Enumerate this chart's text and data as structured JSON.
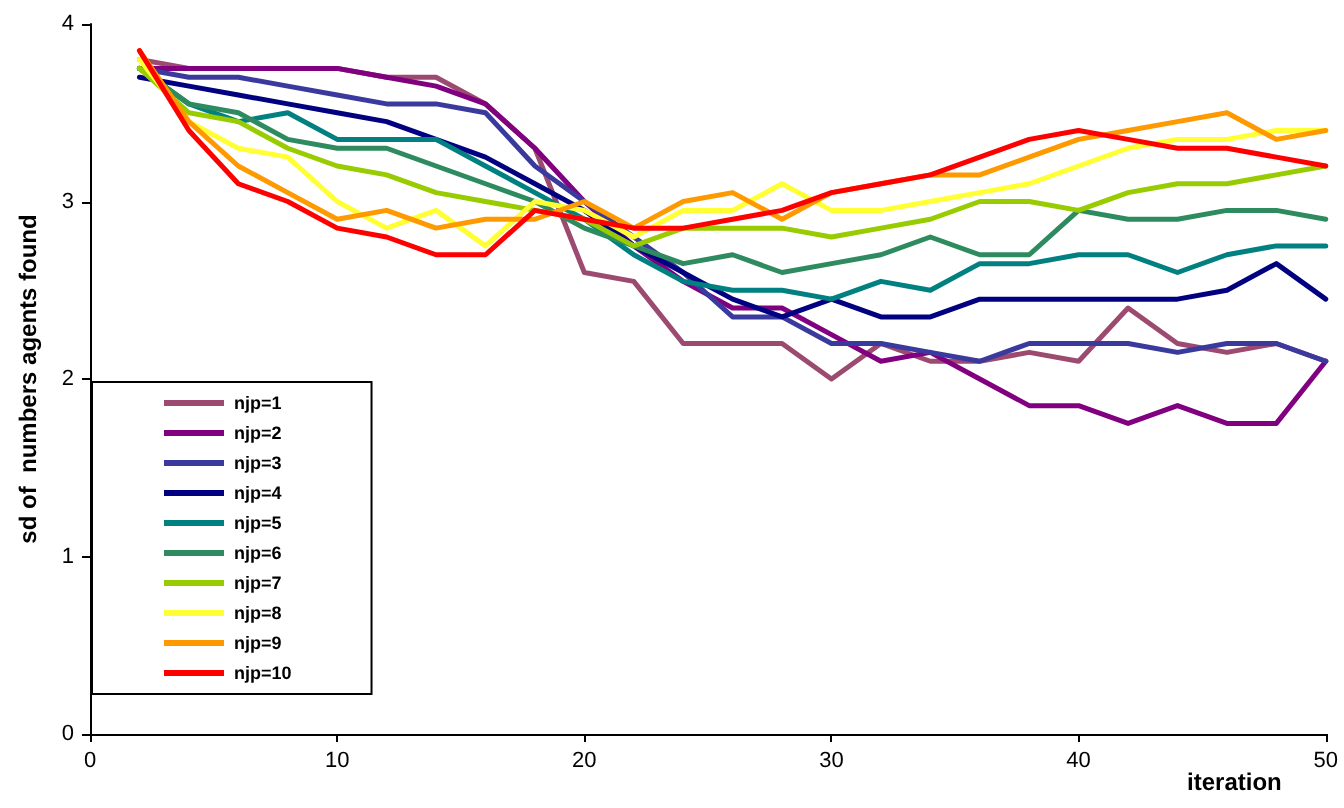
{
  "chart_data": {
    "type": "line",
    "xlabel": "iteration",
    "ylabel": "sd of  numbers agents found",
    "x": [
      2,
      4,
      6,
      8,
      10,
      12,
      14,
      16,
      18,
      20,
      22,
      24,
      26,
      28,
      30,
      32,
      34,
      36,
      38,
      40,
      42,
      44,
      46,
      48,
      50
    ],
    "xlim": [
      0,
      50
    ],
    "xticks": [
      0,
      10,
      20,
      30,
      40,
      50
    ],
    "ylim": [
      0,
      4
    ],
    "yticks": [
      0,
      1,
      2,
      3,
      4
    ],
    "grid": false,
    "legend": "bottom left",
    "marker": "none",
    "line_style": "solid",
    "series": [
      {
        "name": "njp=1",
        "color": "#9c4a70",
        "values": [
          3.8,
          3.75,
          3.75,
          3.75,
          3.75,
          3.7,
          3.7,
          3.55,
          3.3,
          2.6,
          2.55,
          2.2,
          2.2,
          2.2,
          2.0,
          2.2,
          2.1,
          2.1,
          2.15,
          2.1,
          2.4,
          2.2,
          2.15,
          2.2,
          2.1
        ]
      },
      {
        "name": "njp=2",
        "color": "#800080",
        "values": [
          3.75,
          3.75,
          3.75,
          3.75,
          3.75,
          3.7,
          3.65,
          3.55,
          3.3,
          3.0,
          2.75,
          2.55,
          2.4,
          2.4,
          2.25,
          2.1,
          2.15,
          2.0,
          1.85,
          1.85,
          1.75,
          1.85,
          1.75,
          1.75,
          2.1
        ]
      },
      {
        "name": "njp=3",
        "color": "#3a3a9e",
        "values": [
          3.75,
          3.7,
          3.7,
          3.65,
          3.6,
          3.55,
          3.55,
          3.5,
          3.2,
          3.0,
          2.8,
          2.6,
          2.35,
          2.35,
          2.2,
          2.2,
          2.15,
          2.1,
          2.2,
          2.2,
          2.2,
          2.15,
          2.2,
          2.2,
          2.1
        ]
      },
      {
        "name": "njp=4",
        "color": "#000080",
        "values": [
          3.7,
          3.65,
          3.6,
          3.55,
          3.5,
          3.45,
          3.35,
          3.25,
          3.1,
          2.95,
          2.75,
          2.6,
          2.45,
          2.35,
          2.45,
          2.35,
          2.35,
          2.45,
          2.45,
          2.45,
          2.45,
          2.45,
          2.5,
          2.65,
          2.45
        ]
      },
      {
        "name": "njp=5",
        "color": "#008080",
        "values": [
          3.75,
          3.55,
          3.45,
          3.5,
          3.35,
          3.35,
          3.35,
          3.2,
          3.05,
          2.9,
          2.7,
          2.55,
          2.5,
          2.5,
          2.45,
          2.55,
          2.5,
          2.65,
          2.65,
          2.7,
          2.7,
          2.6,
          2.7,
          2.75,
          2.75
        ]
      },
      {
        "name": "njp=6",
        "color": "#2e8b5f",
        "values": [
          3.75,
          3.55,
          3.5,
          3.35,
          3.3,
          3.3,
          3.2,
          3.1,
          3.0,
          2.85,
          2.75,
          2.65,
          2.7,
          2.6,
          2.65,
          2.7,
          2.8,
          2.7,
          2.7,
          2.95,
          2.9,
          2.9,
          2.95,
          2.95,
          2.9
        ]
      },
      {
        "name": "njp=7",
        "color": "#99cc00",
        "values": [
          3.75,
          3.5,
          3.45,
          3.3,
          3.2,
          3.15,
          3.05,
          3.0,
          2.95,
          2.9,
          2.75,
          2.85,
          2.85,
          2.85,
          2.8,
          2.85,
          2.9,
          3.0,
          3.0,
          2.95,
          3.05,
          3.1,
          3.1,
          3.15,
          3.2
        ]
      },
      {
        "name": "njp=8",
        "color": "#ffff33",
        "values": [
          3.8,
          3.45,
          3.3,
          3.25,
          3.0,
          2.85,
          2.95,
          2.75,
          3.0,
          2.95,
          2.8,
          2.95,
          2.95,
          3.1,
          2.95,
          2.95,
          3.0,
          3.05,
          3.1,
          3.2,
          3.3,
          3.35,
          3.35,
          3.4,
          3.4
        ]
      },
      {
        "name": "njp=9",
        "color": "#ff9900",
        "values": [
          3.85,
          3.45,
          3.2,
          3.05,
          2.9,
          2.95,
          2.85,
          2.9,
          2.9,
          3.0,
          2.85,
          3.0,
          3.05,
          2.9,
          3.05,
          3.1,
          3.15,
          3.15,
          3.25,
          3.35,
          3.4,
          3.45,
          3.5,
          3.35,
          3.4
        ]
      },
      {
        "name": "njp=10",
        "color": "#ff0000",
        "values": [
          3.85,
          3.4,
          3.1,
          3.0,
          2.85,
          2.8,
          2.7,
          2.7,
          2.95,
          2.9,
          2.85,
          2.85,
          2.9,
          2.95,
          3.05,
          3.1,
          3.15,
          3.25,
          3.35,
          3.4,
          3.35,
          3.3,
          3.3,
          3.25,
          3.2
        ]
      }
    ]
  }
}
